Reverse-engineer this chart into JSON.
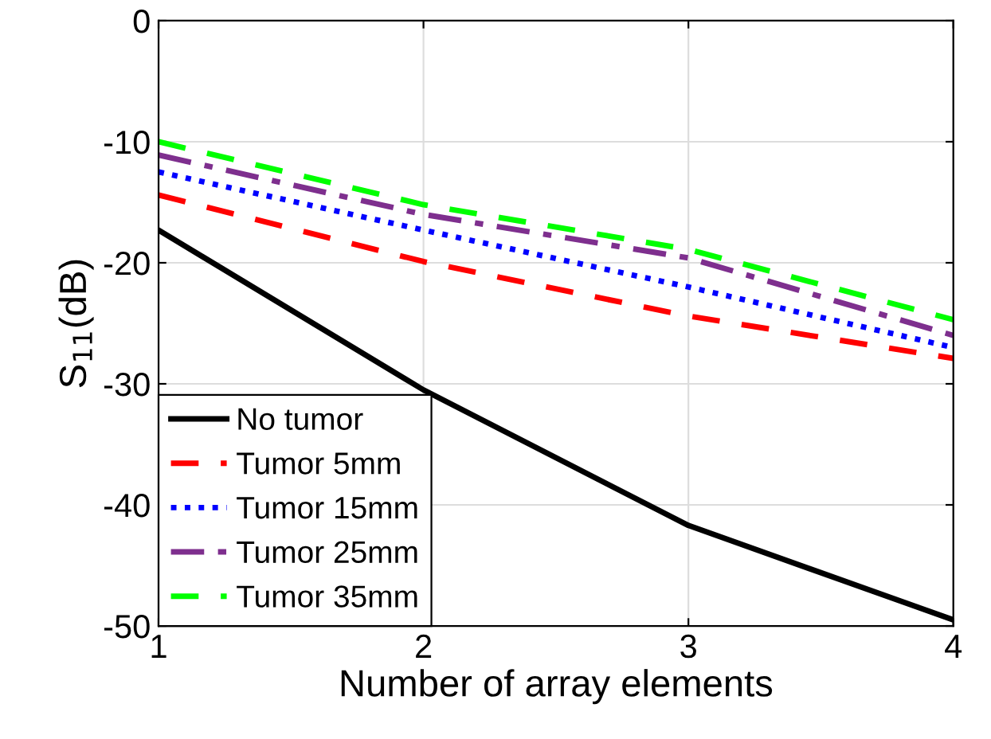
{
  "chart_data": {
    "type": "line",
    "xlabel": "Number of array elements",
    "ylabel": "S$_{11}$(dB)",
    "x": [
      1,
      2,
      3,
      4
    ],
    "xlim": [
      1,
      4
    ],
    "xticks": [
      1,
      2,
      3,
      4
    ],
    "ylim": [
      -50,
      0
    ],
    "yticks": [
      -50,
      -40,
      -30,
      -20,
      -10,
      0
    ],
    "grid": true,
    "legend": "bottom left",
    "series": [
      {
        "name": "No tumor",
        "color": "#000000",
        "line_style": "solid",
        "values": [
          -17.3,
          -30.5,
          -41.7,
          -49.5
        ]
      },
      {
        "name": "Tumor 5mm",
        "color": "#ff0000",
        "line_style": "dashed",
        "values": [
          -14.4,
          -19.9,
          -24.4,
          -27.9
        ]
      },
      {
        "name": "Tumor 15mm",
        "color": "#0000ff",
        "line_style": "dotted",
        "values": [
          -12.5,
          -17.3,
          -22.0,
          -27.0
        ]
      },
      {
        "name": "Tumor 25mm",
        "color": "#7e2f8e",
        "line_style": "dashdot",
        "values": [
          -11.1,
          -16.0,
          -19.6,
          -26.0
        ]
      },
      {
        "name": "Tumor 35mm",
        "color": "#00ff00",
        "line_style": "dashed",
        "values": [
          -10.0,
          -15.2,
          -18.9,
          -24.7
        ]
      }
    ]
  }
}
